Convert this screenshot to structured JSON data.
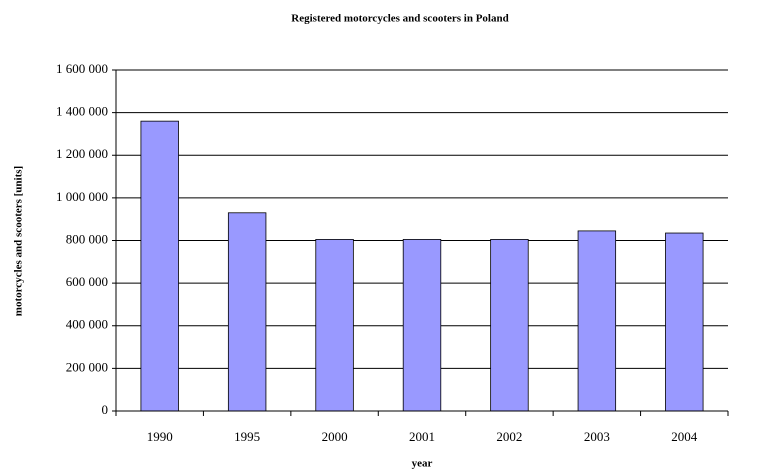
{
  "chart_data": {
    "type": "bar",
    "title": "Registered motorcycles and scooters in Poland",
    "x_label": "year",
    "y_label": "motorcycles and scooters [units]",
    "categories": [
      "1990",
      "1995",
      "2000",
      "2001",
      "2002",
      "2003",
      "2004"
    ],
    "values": [
      1360000,
      930000,
      805000,
      805000,
      805000,
      845000,
      835000
    ],
    "color": "#9999ff",
    "ylim": [
      0,
      1600000
    ],
    "yticks": [
      0,
      {
        "value": 200000,
        "label": "200 000"
      },
      {
        "value": 400000,
        "label": "400 000"
      },
      {
        "value": 600000,
        "label": "600 000"
      },
      {
        "value": 800000,
        "label": "800 000"
      },
      {
        "value": 1000000,
        "label": "1 000 000"
      },
      {
        "value": 1200000,
        "label": "1 200 000"
      },
      {
        "value": 1400000,
        "label": "1 400 000"
      },
      {
        "value": 1600000,
        "label": "1 600 000"
      }
    ],
    "grid": true
  }
}
